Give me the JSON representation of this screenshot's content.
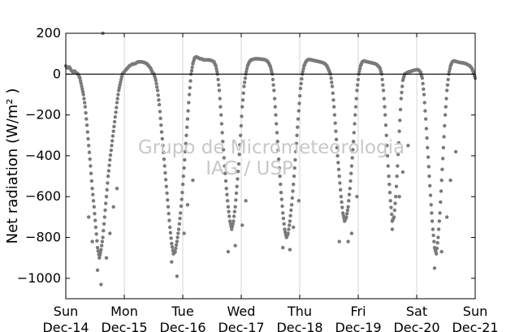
{
  "chart_data": {
    "type": "scatter",
    "title": "",
    "ylabel": "Net radiation (W/m² )",
    "xlabel": "",
    "ylim": [
      -1100,
      200
    ],
    "yticks": [
      200,
      0,
      -200,
      -400,
      -600,
      -800,
      -1000
    ],
    "ytick_labels": [
      "200",
      "0",
      "−200",
      "−400",
      "−600",
      "−800",
      "−1000"
    ],
    "x_ticks": [
      {
        "day": "Sun",
        "date": "Dec-14"
      },
      {
        "day": "Mon",
        "date": "Dec-15"
      },
      {
        "day": "Tue",
        "date": "Dec-16"
      },
      {
        "day": "Wed",
        "date": "Dec-17"
      },
      {
        "day": "Thu",
        "date": "Dec-18"
      },
      {
        "day": "Fri",
        "date": "Dec-19"
      },
      {
        "day": "Sat",
        "date": "Dec-20"
      },
      {
        "day": "Sun",
        "date": "Dec-21"
      }
    ],
    "grid": "vertical",
    "zero_line": true,
    "marker_color": "#7a7a7a",
    "watermark": [
      "Grupo de Micrometeorologia",
      "IAG / USP"
    ],
    "series": [
      {
        "points": [
          [
            0.0,
            40
          ],
          [
            0.02,
            30
          ],
          [
            0.04,
            35
          ],
          [
            0.06,
            20
          ],
          [
            0.08,
            10
          ],
          [
            0.1,
            15
          ],
          [
            0.12,
            5
          ],
          [
            0.14,
            0
          ],
          [
            0.16,
            -20
          ],
          [
            0.18,
            -60
          ],
          [
            0.2,
            -100
          ],
          [
            0.22,
            -160
          ],
          [
            0.24,
            -250
          ],
          [
            0.26,
            -350
          ],
          [
            0.28,
            -450
          ],
          [
            0.3,
            -560
          ],
          [
            0.32,
            -650
          ],
          [
            0.34,
            -750
          ],
          [
            0.36,
            -850
          ],
          [
            0.38,
            -900
          ],
          [
            0.4,
            -860
          ],
          [
            0.42,
            -800
          ],
          [
            0.44,
            -700
          ],
          [
            0.46,
            -600
          ],
          [
            0.48,
            -500
          ],
          [
            0.5,
            -420
          ],
          [
            0.52,
            -350
          ],
          [
            0.54,
            -280
          ],
          [
            0.56,
            -210
          ],
          [
            0.58,
            -140
          ],
          [
            0.6,
            -80
          ],
          [
            0.62,
            -40
          ],
          [
            0.64,
            0
          ],
          [
            0.66,
            10
          ],
          [
            0.68,
            20
          ],
          [
            0.7,
            30
          ],
          [
            0.72,
            40
          ],
          [
            0.74,
            45
          ],
          [
            0.76,
            50
          ],
          [
            0.78,
            50
          ],
          [
            0.8,
            55
          ],
          [
            0.82,
            60
          ],
          [
            0.84,
            60
          ],
          [
            0.86,
            60
          ],
          [
            0.88,
            58
          ],
          [
            0.9,
            55
          ],
          [
            0.92,
            50
          ],
          [
            0.94,
            40
          ],
          [
            0.96,
            30
          ],
          [
            0.98,
            10
          ],
          [
            1.0,
            0
          ],
          [
            1.02,
            -30
          ],
          [
            1.04,
            -80
          ],
          [
            1.06,
            -150
          ],
          [
            1.08,
            -250
          ],
          [
            1.1,
            -350
          ],
          [
            1.12,
            -450
          ],
          [
            1.14,
            -550
          ],
          [
            1.16,
            -650
          ],
          [
            1.18,
            -750
          ],
          [
            1.2,
            -830
          ],
          [
            1.22,
            -880
          ],
          [
            1.24,
            -870
          ],
          [
            1.26,
            -820
          ],
          [
            1.28,
            -760
          ],
          [
            1.3,
            -680
          ],
          [
            1.32,
            -580
          ],
          [
            1.34,
            -460
          ],
          [
            1.36,
            -340
          ],
          [
            1.38,
            -220
          ],
          [
            1.4,
            -100
          ],
          [
            1.42,
            0
          ],
          [
            1.44,
            50
          ],
          [
            1.46,
            80
          ],
          [
            1.48,
            85
          ],
          [
            1.5,
            80
          ],
          [
            1.52,
            75
          ],
          [
            1.54,
            75
          ],
          [
            1.56,
            70
          ],
          [
            1.58,
            70
          ],
          [
            1.6,
            70
          ],
          [
            1.62,
            70
          ],
          [
            1.64,
            68
          ],
          [
            1.66,
            65
          ],
          [
            1.68,
            60
          ],
          [
            1.7,
            40
          ],
          [
            1.72,
            0
          ],
          [
            1.74,
            -80
          ],
          [
            1.76,
            -200
          ],
          [
            1.78,
            -330
          ],
          [
            1.8,
            -450
          ],
          [
            1.82,
            -560
          ],
          [
            1.84,
            -650
          ],
          [
            1.86,
            -720
          ],
          [
            1.88,
            -760
          ],
          [
            1.9,
            -720
          ],
          [
            1.92,
            -650
          ],
          [
            1.94,
            -550
          ],
          [
            1.96,
            -440
          ],
          [
            1.98,
            -300
          ],
          [
            2.0,
            -160
          ],
          [
            2.02,
            -60
          ],
          [
            2.04,
            0
          ],
          [
            2.06,
            40
          ],
          [
            2.08,
            60
          ],
          [
            2.1,
            70
          ],
          [
            2.12,
            72
          ],
          [
            2.14,
            75
          ],
          [
            2.16,
            75
          ],
          [
            2.18,
            75
          ],
          [
            2.2,
            74
          ],
          [
            2.22,
            73
          ],
          [
            2.24,
            72
          ],
          [
            2.26,
            70
          ],
          [
            2.28,
            65
          ],
          [
            2.3,
            55
          ],
          [
            2.32,
            35
          ],
          [
            2.34,
            0
          ],
          [
            2.36,
            -80
          ],
          [
            2.38,
            -200
          ],
          [
            2.4,
            -330
          ],
          [
            2.42,
            -460
          ],
          [
            2.44,
            -580
          ],
          [
            2.46,
            -680
          ],
          [
            2.48,
            -760
          ],
          [
            2.5,
            -800
          ],
          [
            2.52,
            -780
          ],
          [
            2.54,
            -720
          ],
          [
            2.56,
            -640
          ],
          [
            2.58,
            -540
          ],
          [
            2.6,
            -420
          ],
          [
            2.62,
            -300
          ],
          [
            2.64,
            -180
          ],
          [
            2.66,
            -70
          ],
          [
            2.68,
            0
          ],
          [
            2.7,
            40
          ],
          [
            2.72,
            60
          ],
          [
            2.74,
            70
          ],
          [
            2.76,
            72
          ],
          [
            2.78,
            70
          ],
          [
            2.8,
            68
          ],
          [
            2.82,
            66
          ],
          [
            2.84,
            64
          ],
          [
            2.86,
            62
          ],
          [
            2.88,
            60
          ],
          [
            2.9,
            58
          ],
          [
            2.92,
            55
          ],
          [
            2.94,
            50
          ],
          [
            2.96,
            40
          ],
          [
            2.98,
            20
          ],
          [
            3.0,
            0
          ],
          [
            3.02,
            -60
          ],
          [
            3.04,
            -160
          ],
          [
            3.06,
            -280
          ],
          [
            3.08,
            -400
          ],
          [
            3.1,
            -500
          ],
          [
            3.12,
            -600
          ],
          [
            3.14,
            -680
          ],
          [
            3.16,
            -720
          ],
          [
            3.18,
            -700
          ],
          [
            3.2,
            -650
          ],
          [
            3.22,
            -560
          ],
          [
            3.24,
            -450
          ],
          [
            3.26,
            -330
          ],
          [
            3.28,
            -200
          ],
          [
            3.3,
            -80
          ],
          [
            3.32,
            0
          ],
          [
            3.34,
            40
          ],
          [
            3.36,
            60
          ],
          [
            3.38,
            65
          ],
          [
            3.4,
            62
          ],
          [
            3.42,
            60
          ],
          [
            3.44,
            58
          ],
          [
            3.46,
            56
          ],
          [
            3.48,
            54
          ],
          [
            3.5,
            52
          ],
          [
            3.52,
            48
          ],
          [
            3.54,
            40
          ],
          [
            3.56,
            30
          ],
          [
            3.58,
            0
          ],
          [
            3.6,
            -80
          ],
          [
            3.62,
            -200
          ],
          [
            3.64,
            -350
          ],
          [
            3.66,
            -500
          ],
          [
            3.68,
            -620
          ],
          [
            3.7,
            -720
          ],
          [
            3.72,
            -700
          ],
          [
            3.74,
            -600
          ],
          [
            3.76,
            -450
          ],
          [
            3.78,
            -280
          ],
          [
            3.8,
            -120
          ],
          [
            3.82,
            -30
          ],
          [
            3.84,
            0
          ],
          [
            3.86,
            5
          ],
          [
            3.88,
            10
          ],
          [
            3.9,
            12
          ],
          [
            3.92,
            15
          ],
          [
            3.94,
            18
          ],
          [
            3.96,
            20
          ],
          [
            3.98,
            22
          ],
          [
            4.0,
            20
          ],
          [
            4.02,
            10
          ],
          [
            4.04,
            -20
          ],
          [
            4.06,
            -100
          ],
          [
            4.08,
            -220
          ],
          [
            4.1,
            -360
          ],
          [
            4.12,
            -500
          ],
          [
            4.14,
            -640
          ],
          [
            4.16,
            -760
          ],
          [
            4.18,
            -850
          ],
          [
            4.2,
            -880
          ],
          [
            4.22,
            -800
          ],
          [
            4.24,
            -680
          ],
          [
            4.26,
            -520
          ],
          [
            4.28,
            -360
          ],
          [
            4.3,
            -200
          ],
          [
            4.32,
            -80
          ],
          [
            4.34,
            0
          ],
          [
            4.36,
            40
          ],
          [
            4.38,
            60
          ],
          [
            4.4,
            65
          ],
          [
            4.42,
            62
          ],
          [
            4.44,
            60
          ],
          [
            4.46,
            58
          ],
          [
            4.48,
            56
          ],
          [
            4.5,
            55
          ],
          [
            4.52,
            53
          ],
          [
            4.54,
            50
          ],
          [
            4.56,
            45
          ],
          [
            4.58,
            40
          ],
          [
            4.6,
            30
          ],
          [
            4.62,
            10
          ],
          [
            4.64,
            -20
          ]
        ],
        "scatter_spikes": [
          [
            0.42,
            200
          ],
          [
            0.4,
            -1030
          ],
          [
            0.36,
            -960
          ],
          [
            0.3,
            -820
          ],
          [
            0.26,
            -700
          ],
          [
            0.46,
            -900
          ],
          [
            0.5,
            -780
          ],
          [
            0.54,
            -650
          ],
          [
            0.58,
            -560
          ],
          [
            1.26,
            -990
          ],
          [
            1.2,
            -920
          ],
          [
            1.34,
            -780
          ],
          [
            1.38,
            -640
          ],
          [
            1.44,
            -520
          ],
          [
            1.84,
            -870
          ],
          [
            1.92,
            -840
          ],
          [
            2.0,
            -740
          ],
          [
            2.04,
            -620
          ],
          [
            2.46,
            -850
          ],
          [
            2.54,
            -860
          ],
          [
            2.58,
            -750
          ],
          [
            2.64,
            -620
          ],
          [
            3.1,
            -820
          ],
          [
            3.2,
            -820
          ],
          [
            3.24,
            -780
          ],
          [
            3.3,
            -600
          ],
          [
            3.7,
            -760
          ],
          [
            3.78,
            -600
          ],
          [
            3.82,
            -480
          ],
          [
            3.88,
            -350
          ],
          [
            4.18,
            -950
          ],
          [
            4.26,
            -870
          ],
          [
            4.32,
            -700
          ],
          [
            4.36,
            -520
          ],
          [
            4.42,
            -380
          ]
        ]
      }
    ]
  }
}
